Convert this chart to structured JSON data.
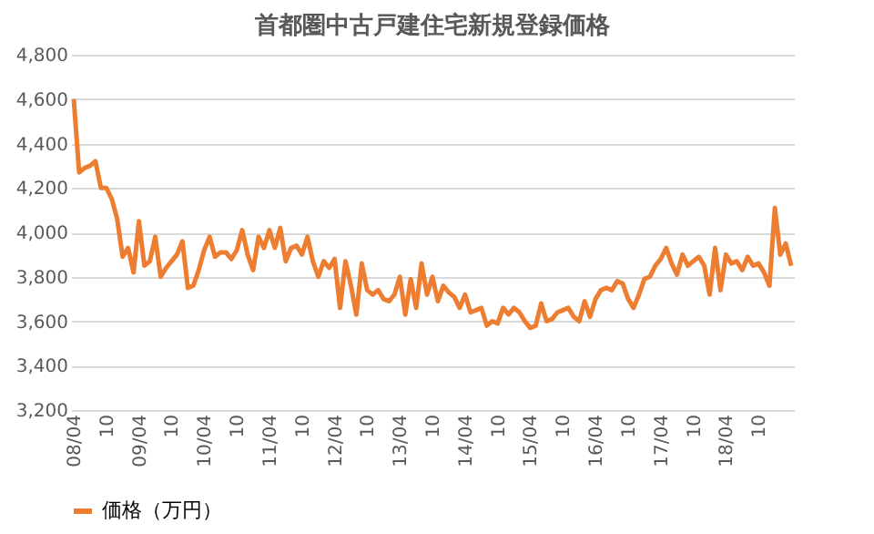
{
  "chart_data": {
    "type": "line",
    "title": "首都圏中古戸建住宅新規登録価格",
    "categories": [
      "08/04",
      null,
      null,
      null,
      null,
      null,
      "10",
      null,
      null,
      null,
      null,
      null,
      "09/04",
      null,
      null,
      null,
      null,
      null,
      "10",
      null,
      null,
      null,
      null,
      null,
      "10/04",
      null,
      null,
      null,
      null,
      null,
      "10",
      null,
      null,
      null,
      null,
      null,
      "11/04",
      null,
      null,
      null,
      null,
      null,
      "10",
      null,
      null,
      null,
      null,
      null,
      "12/04",
      null,
      null,
      null,
      null,
      null,
      "10",
      null,
      null,
      null,
      null,
      null,
      "13/04",
      null,
      null,
      null,
      null,
      null,
      "10",
      null,
      null,
      null,
      null,
      null,
      "14/04",
      null,
      null,
      null,
      null,
      null,
      "10",
      null,
      null,
      null,
      null,
      null,
      "15/04",
      null,
      null,
      null,
      null,
      null,
      "10",
      null,
      null,
      null,
      null,
      null,
      "16/04",
      null,
      null,
      null,
      null,
      null,
      "10",
      null,
      null,
      null,
      null,
      null,
      "17/04",
      null,
      null,
      null,
      null,
      null,
      "10",
      null,
      null,
      null,
      null,
      null,
      "18/04",
      null,
      null,
      null,
      null,
      null,
      "10",
      null,
      null,
      null,
      null,
      null,
      null
    ],
    "series": [
      {
        "name": "価格（万円）",
        "color": "#ed7d31",
        "values": [
          4600,
          4270,
          4290,
          4300,
          4320,
          4200,
          4200,
          4150,
          4060,
          3890,
          3930,
          3820,
          4050,
          3850,
          3870,
          3980,
          3800,
          3840,
          3870,
          3900,
          3960,
          3750,
          3760,
          3830,
          3920,
          3980,
          3890,
          3910,
          3910,
          3880,
          3920,
          4010,
          3900,
          3830,
          3980,
          3930,
          4010,
          3930,
          4020,
          3870,
          3930,
          3940,
          3900,
          3980,
          3870,
          3800,
          3870,
          3840,
          3880,
          3660,
          3870,
          3760,
          3630,
          3860,
          3740,
          3720,
          3740,
          3700,
          3690,
          3720,
          3800,
          3630,
          3790,
          3660,
          3860,
          3720,
          3800,
          3690,
          3760,
          3730,
          3710,
          3660,
          3720,
          3640,
          3650,
          3660,
          3580,
          3600,
          3590,
          3660,
          3630,
          3660,
          3640,
          3600,
          3570,
          3580,
          3680,
          3600,
          3610,
          3640,
          3650,
          3660,
          3620,
          3600,
          3690,
          3620,
          3700,
          3740,
          3750,
          3740,
          3780,
          3770,
          3700,
          3660,
          3720,
          3790,
          3800,
          3850,
          3880,
          3930,
          3860,
          3810,
          3900,
          3850,
          3870,
          3890,
          3850,
          3720,
          3930,
          3740,
          3900,
          3860,
          3870,
          3830,
          3890,
          3850,
          3860,
          3820,
          3760,
          4110,
          3900,
          3950,
          3850
        ]
      }
    ],
    "ylim": [
      3200,
      4800
    ],
    "yticks": [
      {
        "value": 3200,
        "label": "3,200"
      },
      {
        "value": 3400,
        "label": "3,400"
      },
      {
        "value": 3600,
        "label": "3,600"
      },
      {
        "value": 3800,
        "label": "3,800"
      },
      {
        "value": 4000,
        "label": "4,000"
      },
      {
        "value": 4200,
        "label": "4,200"
      },
      {
        "value": 4400,
        "label": "4,400"
      },
      {
        "value": 4600,
        "label": "4,600"
      },
      {
        "value": 4800,
        "label": "4,800"
      }
    ],
    "grid": "y",
    "legend": "bottom",
    "marker": "none",
    "line_style": "solid"
  }
}
